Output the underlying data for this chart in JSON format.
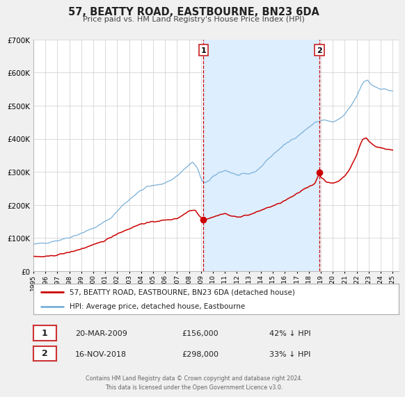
{
  "title": "57, BEATTY ROAD, EASTBOURNE, BN23 6DA",
  "subtitle": "Price paid vs. HM Land Registry's House Price Index (HPI)",
  "legend_line1": "57, BEATTY ROAD, EASTBOURNE, BN23 6DA (detached house)",
  "legend_line2": "HPI: Average price, detached house, Eastbourne",
  "annotation1_date": "20-MAR-2009",
  "annotation1_price": "£156,000",
  "annotation1_pct": "42% ↓ HPI",
  "annotation2_date": "16-NOV-2018",
  "annotation2_price": "£298,000",
  "annotation2_pct": "33% ↓ HPI",
  "marker1_x": 2009.21,
  "marker1_y": 156000,
  "marker2_x": 2018.88,
  "marker2_y": 298000,
  "vline1_x": 2009.21,
  "vline2_x": 2018.88,
  "shade_x1": 2009.21,
  "shade_x2": 2018.88,
  "hpi_color": "#7ab0d8",
  "price_color": "#cc0000",
  "marker_color": "#cc0000",
  "shade_color": "#ddeeff",
  "vline_color": "#cc0000",
  "bg_color": "#f0f0f0",
  "plot_bg_color": "#ffffff",
  "grid_color": "#cccccc",
  "box_edge_color": "#cc3333",
  "footer_text": "Contains HM Land Registry data © Crown copyright and database right 2024.\nThis data is licensed under the Open Government Licence v3.0.",
  "ylim": [
    0,
    700000
  ],
  "yticks": [
    0,
    100000,
    200000,
    300000,
    400000,
    500000,
    600000,
    700000
  ],
  "xlim_start": 1995.0,
  "xlim_end": 2025.5,
  "hpi_anchors": [
    [
      1995.0,
      80000
    ],
    [
      1996.0,
      86000
    ],
    [
      1997.0,
      93000
    ],
    [
      1997.5,
      97000
    ],
    [
      1998.5,
      108000
    ],
    [
      1999.5,
      122000
    ],
    [
      2000.5,
      138000
    ],
    [
      2001.5,
      162000
    ],
    [
      2002.5,
      200000
    ],
    [
      2003.5,
      232000
    ],
    [
      2004.5,
      255000
    ],
    [
      2005.0,
      258000
    ],
    [
      2005.5,
      261000
    ],
    [
      2006.0,
      268000
    ],
    [
      2006.5,
      275000
    ],
    [
      2007.0,
      288000
    ],
    [
      2007.5,
      305000
    ],
    [
      2008.0,
      320000
    ],
    [
      2008.3,
      330000
    ],
    [
      2008.7,
      310000
    ],
    [
      2009.0,
      278000
    ],
    [
      2009.3,
      268000
    ],
    [
      2009.7,
      272000
    ],
    [
      2010.0,
      285000
    ],
    [
      2010.5,
      298000
    ],
    [
      2011.0,
      305000
    ],
    [
      2011.5,
      298000
    ],
    [
      2012.0,
      290000
    ],
    [
      2012.5,
      291000
    ],
    [
      2013.0,
      294000
    ],
    [
      2013.5,
      300000
    ],
    [
      2014.0,
      315000
    ],
    [
      2014.5,
      335000
    ],
    [
      2015.0,
      352000
    ],
    [
      2015.5,
      368000
    ],
    [
      2016.0,
      382000
    ],
    [
      2016.5,
      395000
    ],
    [
      2017.0,
      408000
    ],
    [
      2017.5,
      420000
    ],
    [
      2018.0,
      435000
    ],
    [
      2018.5,
      448000
    ],
    [
      2019.0,
      455000
    ],
    [
      2019.3,
      458000
    ],
    [
      2019.7,
      452000
    ],
    [
      2020.0,
      450000
    ],
    [
      2020.5,
      458000
    ],
    [
      2021.0,
      472000
    ],
    [
      2021.5,
      498000
    ],
    [
      2022.0,
      528000
    ],
    [
      2022.3,
      552000
    ],
    [
      2022.6,
      573000
    ],
    [
      2022.9,
      578000
    ],
    [
      2023.1,
      568000
    ],
    [
      2023.4,
      560000
    ],
    [
      2023.7,
      555000
    ],
    [
      2024.0,
      552000
    ],
    [
      2024.5,
      548000
    ],
    [
      2025.0,
      545000
    ]
  ],
  "price_anchors": [
    [
      1995.0,
      44000
    ],
    [
      1996.0,
      43500
    ],
    [
      1997.0,
      49000
    ],
    [
      1998.0,
      57000
    ],
    [
      1999.0,
      67000
    ],
    [
      2000.0,
      79000
    ],
    [
      2001.0,
      93000
    ],
    [
      2002.0,
      113000
    ],
    [
      2003.0,
      128000
    ],
    [
      2004.0,
      143000
    ],
    [
      2005.0,
      149000
    ],
    [
      2005.5,
      152000
    ],
    [
      2006.0,
      154000
    ],
    [
      2006.5,
      156000
    ],
    [
      2007.0,
      159000
    ],
    [
      2007.5,
      170000
    ],
    [
      2008.0,
      182000
    ],
    [
      2008.5,
      185000
    ],
    [
      2009.0,
      162000
    ],
    [
      2009.21,
      156000
    ],
    [
      2009.5,
      158000
    ],
    [
      2010.0,
      163000
    ],
    [
      2010.5,
      170000
    ],
    [
      2011.0,
      174000
    ],
    [
      2011.5,
      167000
    ],
    [
      2012.0,
      163000
    ],
    [
      2012.5,
      167000
    ],
    [
      2013.0,
      170000
    ],
    [
      2013.5,
      176000
    ],
    [
      2014.0,
      184000
    ],
    [
      2014.5,
      191000
    ],
    [
      2015.0,
      197000
    ],
    [
      2015.5,
      204000
    ],
    [
      2016.0,
      213000
    ],
    [
      2016.5,
      223000
    ],
    [
      2017.0,
      233000
    ],
    [
      2017.5,
      246000
    ],
    [
      2018.0,
      256000
    ],
    [
      2018.5,
      264000
    ],
    [
      2018.88,
      298000
    ],
    [
      2019.0,
      284000
    ],
    [
      2019.5,
      268000
    ],
    [
      2020.0,
      266000
    ],
    [
      2020.5,
      272000
    ],
    [
      2021.0,
      288000
    ],
    [
      2021.5,
      313000
    ],
    [
      2022.0,
      352000
    ],
    [
      2022.3,
      383000
    ],
    [
      2022.5,
      398000
    ],
    [
      2022.8,
      403000
    ],
    [
      2023.0,
      393000
    ],
    [
      2023.5,
      378000
    ],
    [
      2024.0,
      373000
    ],
    [
      2024.5,
      368000
    ],
    [
      2025.0,
      366000
    ]
  ]
}
